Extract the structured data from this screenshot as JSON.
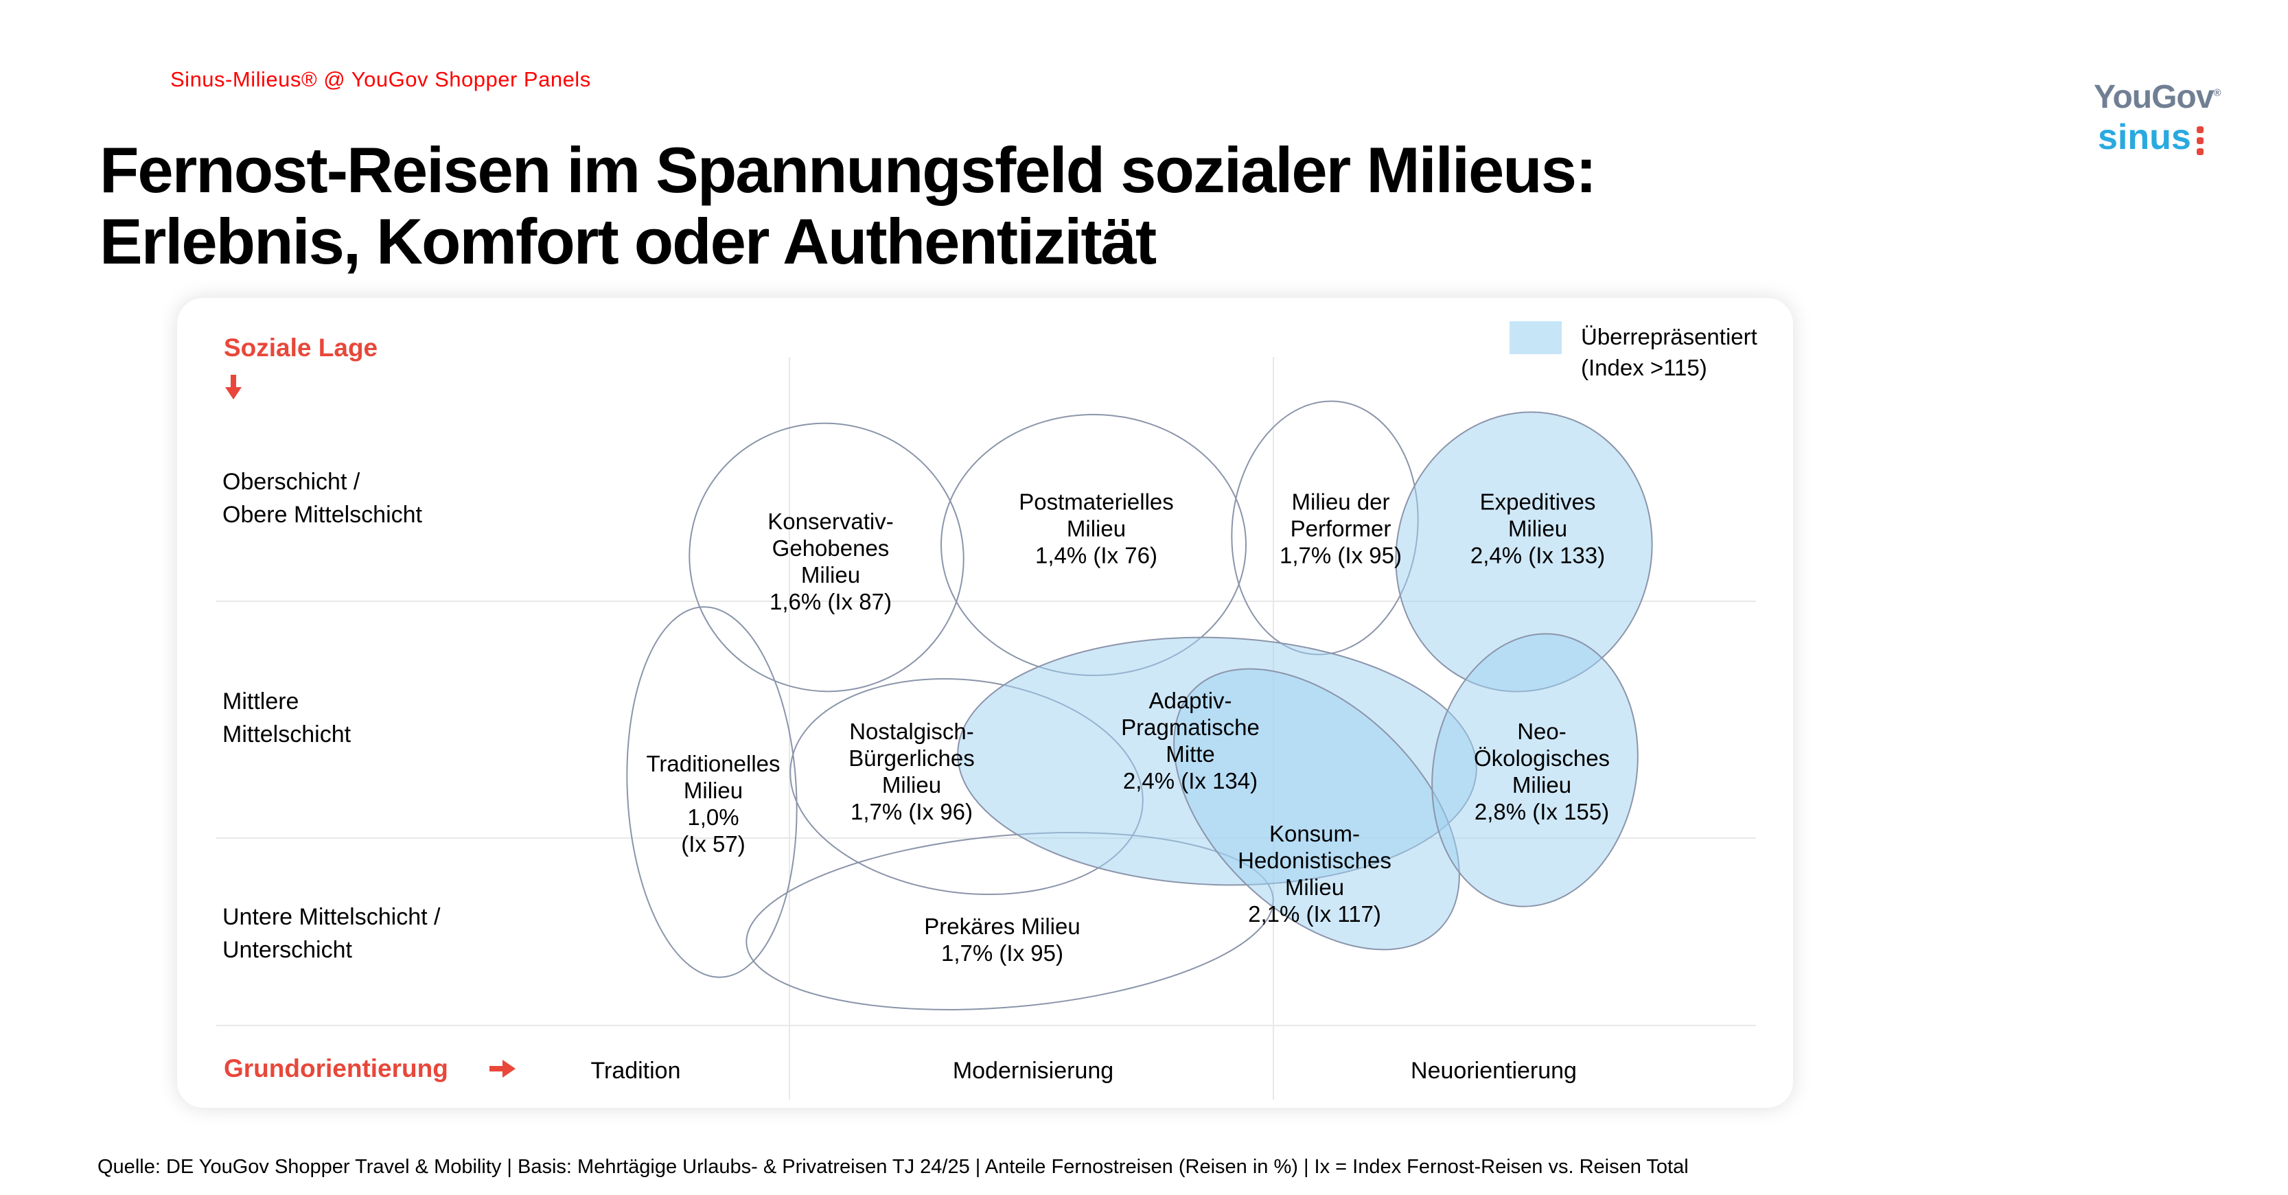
{
  "header": {
    "eyebrow": "Sinus-Milieus® @ YouGov Shopper Panels",
    "title_line1": "Fernost-Reisen im Spannungsfeld sozialer Milieus:",
    "title_line2": "Erlebnis, Komfort oder Authentizität"
  },
  "logos": {
    "yougov": "YouGov",
    "yougov_mark": "®",
    "sinus": "sinus"
  },
  "legend": {
    "label_line1": "Überrepräsentiert",
    "label_line2": "(Index >115)",
    "swatch_color": "#c6e6f8",
    "threshold_index": 115
  },
  "axes": {
    "y_title": "Soziale Lage",
    "y_labels": [
      {
        "line1": "Oberschicht /",
        "line2": "Obere Mittelschicht"
      },
      {
        "line1": "Mittlere",
        "line2": "Mittelschicht"
      },
      {
        "line1": "Untere Mittelschicht /",
        "line2": "Unterschicht"
      }
    ],
    "x_title": "Grundorientierung",
    "x_labels": [
      "Tradition",
      "Modernisierung",
      "Neuorientierung"
    ]
  },
  "icons": {
    "soziale_lage_arrow": "down-arrow",
    "grundorientierung_arrow": "right-arrow"
  },
  "colors": {
    "accent_red": "#e8473a",
    "eyebrow_red": "#ff0000",
    "highlight_fill": "#d4eaf8",
    "ellipse_stroke": "#8b95aa",
    "gridline": "#e8e8e8",
    "yougov_gray": "#707f93",
    "sinus_blue": "#29a9e0",
    "sinus_dot_red": "#e8453b"
  },
  "footer": "Quelle: DE YouGov Shopper Travel & Mobility | Basis: Mehrtägige Urlaubs- & Privatreisen TJ 24/25 | Anteile Fernostreisen (Reisen in %) | Ix = Index Fernost-Reisen vs. Reisen Total",
  "chart_data": {
    "type": "scatter",
    "subtype": "sinus-milieu-map",
    "x_axis": {
      "title": "Grundorientierung",
      "categories": [
        "Tradition",
        "Modernisierung",
        "Neuorientierung"
      ]
    },
    "y_axis": {
      "title": "Soziale Lage",
      "categories_top_to_bottom": [
        "Oberschicht / Obere Mittelschicht",
        "Mittlere Mittelschicht",
        "Untere Mittelschicht / Unterschicht"
      ]
    },
    "legend": {
      "label": "Überrepräsentiert (Index >115)",
      "rule": "highlighted if index > 115"
    },
    "milieus": [
      {
        "id": "konservativ-gehobenes",
        "name": "Konservativ-Gehobenes Milieu",
        "label_lines": [
          "Konservativ-",
          "Gehobenes",
          "Milieu",
          "1,6% (Ix 87)"
        ],
        "share_percent": 1.6,
        "index": 87,
        "highlighted": false,
        "grundorientierung": "Tradition–Modernisierung",
        "soziale_lage": "Oberschicht / Obere Mittelschicht"
      },
      {
        "id": "postmaterielles",
        "name": "Postmaterielles Milieu",
        "label_lines": [
          "Postmaterielles",
          "Milieu",
          "1,4% (Ix 76)"
        ],
        "share_percent": 1.4,
        "index": 76,
        "highlighted": false,
        "grundorientierung": "Modernisierung",
        "soziale_lage": "Oberschicht / Obere Mittelschicht"
      },
      {
        "id": "milieu-der-performer",
        "name": "Milieu der Performer",
        "label_lines": [
          "Milieu der",
          "Performer",
          "1,7% (Ix 95)"
        ],
        "share_percent": 1.7,
        "index": 95,
        "highlighted": false,
        "grundorientierung": "Modernisierung–Neuorientierung",
        "soziale_lage": "Oberschicht / Obere Mittelschicht"
      },
      {
        "id": "expeditives",
        "name": "Expeditives Milieu",
        "label_lines": [
          "Expeditives",
          "Milieu",
          "2,4% (Ix 133)"
        ],
        "share_percent": 2.4,
        "index": 133,
        "highlighted": true,
        "grundorientierung": "Neuorientierung",
        "soziale_lage": "Oberschicht–Mittlere Mittelschicht"
      },
      {
        "id": "traditionelles",
        "name": "Traditionelles Milieu",
        "label_lines": [
          "Traditionelles",
          "Milieu",
          "1,0%",
          "(Ix 57)"
        ],
        "share_percent": 1.0,
        "index": 57,
        "highlighted": false,
        "grundorientierung": "Tradition",
        "soziale_lage": "Mittlere–Untere Mittelschicht"
      },
      {
        "id": "nostalgisch-buergerliches",
        "name": "Nostalgisch-Bürgerliches Milieu",
        "label_lines": [
          "Nostalgisch-",
          "Bürgerliches",
          "Milieu",
          "1,7% (Ix 96)"
        ],
        "share_percent": 1.7,
        "index": 96,
        "highlighted": false,
        "grundorientierung": "Tradition–Modernisierung",
        "soziale_lage": "Mittlere Mittelschicht"
      },
      {
        "id": "adaptiv-pragmatische-mitte",
        "name": "Adaptiv-Pragmatische Mitte",
        "label_lines": [
          "Adaptiv-",
          "Pragmatische",
          "Mitte",
          "2,4% (Ix 134)"
        ],
        "share_percent": 2.4,
        "index": 134,
        "highlighted": true,
        "grundorientierung": "Modernisierung",
        "soziale_lage": "Mittlere Mittelschicht"
      },
      {
        "id": "konsum-hedonistisches",
        "name": "Konsum-Hedonistisches Milieu",
        "label_lines": [
          "Konsum-",
          "Hedonistisches",
          "Milieu",
          "2,1% (Ix 117)"
        ],
        "share_percent": 2.1,
        "index": 117,
        "highlighted": true,
        "grundorientierung": "Modernisierung–Neuorientierung",
        "soziale_lage": "Mittlere–Untere Mittelschicht"
      },
      {
        "id": "neo-oekologisches",
        "name": "Neo-Ökologisches Milieu",
        "label_lines": [
          "Neo-",
          "Ökologisches",
          "Milieu",
          "2,8% (Ix 155)"
        ],
        "share_percent": 2.8,
        "index": 155,
        "highlighted": true,
        "grundorientierung": "Neuorientierung",
        "soziale_lage": "Mittlere Mittelschicht"
      },
      {
        "id": "prekaeres",
        "name": "Prekäres Milieu",
        "label_lines": [
          "Prekäres Milieu",
          "1,7% (Ix 95)"
        ],
        "share_percent": 1.7,
        "index": 95,
        "highlighted": false,
        "grundorientierung": "Modernisierung",
        "soziale_lage": "Untere Mittelschicht / Unterschicht"
      }
    ]
  }
}
